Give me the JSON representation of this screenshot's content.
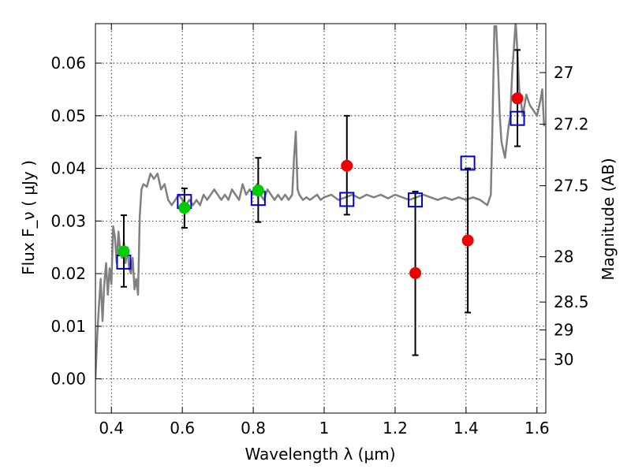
{
  "chart_data": {
    "type": "scatter",
    "title": "",
    "xlabel": "Wavelength  λ (μm)",
    "ylabel": "Flux  F_ν  ( μJy )",
    "ylabel_right": "Magnitude (AB)",
    "xlim": [
      0.355,
      1.625
    ],
    "ylim": [
      -0.0065,
      0.0675
    ],
    "grid": true,
    "x_ticks": [
      0.4,
      0.6,
      0.8,
      1.0,
      1.2,
      1.4,
      1.6
    ],
    "x_tick_labels": [
      "0.4",
      "0.6",
      "0.8",
      "1",
      "1.2",
      "1.4",
      "1.6"
    ],
    "y_ticks": [
      0.0,
      0.01,
      0.02,
      0.03,
      0.04,
      0.05,
      0.06
    ],
    "y_tick_labels": [
      "0.00",
      "0.01",
      "0.02",
      "0.03",
      "0.04",
      "0.05",
      "0.06"
    ],
    "mag_ticks": [
      {
        "label": "27",
        "flux": 0.0582
      },
      {
        "label": "27.2",
        "flux": 0.0484
      },
      {
        "label": "27.5",
        "flux": 0.0367
      },
      {
        "label": "28",
        "flux": 0.0232
      },
      {
        "label": "28.5",
        "flux": 0.0146
      },
      {
        "label": "29",
        "flux": 0.0093
      },
      {
        "label": "30",
        "flux": 0.0037
      }
    ],
    "colors": {
      "model": "#808080",
      "green_points": "#00cc00",
      "red_points": "#ee0000",
      "model_photometry": "#0000cc",
      "error_bars": "#000000"
    },
    "series": [
      {
        "type": "line",
        "color": "#808080",
        "x": [
          0.355,
          0.36,
          0.365,
          0.37,
          0.375,
          0.38,
          0.385,
          0.39,
          0.395,
          0.4,
          0.405,
          0.41,
          0.415,
          0.42,
          0.425,
          0.43,
          0.435,
          0.44,
          0.445,
          0.45,
          0.455,
          0.46,
          0.465,
          0.47,
          0.475,
          0.48,
          0.485,
          0.49,
          0.5,
          0.51,
          0.52,
          0.53,
          0.54,
          0.55,
          0.56,
          0.57,
          0.58,
          0.59,
          0.6,
          0.61,
          0.62,
          0.63,
          0.64,
          0.65,
          0.66,
          0.67,
          0.68,
          0.69,
          0.7,
          0.71,
          0.72,
          0.73,
          0.74,
          0.75,
          0.76,
          0.77,
          0.78,
          0.79,
          0.8,
          0.81,
          0.82,
          0.83,
          0.84,
          0.85,
          0.86,
          0.87,
          0.88,
          0.89,
          0.9,
          0.91,
          0.915,
          0.92,
          0.925,
          0.93,
          0.94,
          0.95,
          0.96,
          0.97,
          0.98,
          0.99,
          1.0,
          1.02,
          1.04,
          1.06,
          1.08,
          1.1,
          1.12,
          1.14,
          1.16,
          1.18,
          1.2,
          1.22,
          1.24,
          1.26,
          1.28,
          1.3,
          1.32,
          1.34,
          1.36,
          1.38,
          1.4,
          1.42,
          1.44,
          1.46,
          1.47,
          1.475,
          1.48,
          1.485,
          1.49,
          1.495,
          1.5,
          1.51,
          1.52,
          1.525,
          1.53,
          1.54,
          1.545,
          1.55,
          1.56,
          1.57,
          1.58,
          1.59,
          1.6,
          1.61,
          1.615,
          1.62
        ],
        "y": [
          0.0,
          0.008,
          0.014,
          0.019,
          0.011,
          0.018,
          0.022,
          0.016,
          0.021,
          0.018,
          0.029,
          0.027,
          0.022,
          0.028,
          0.024,
          0.023,
          0.026,
          0.022,
          0.025,
          0.021,
          0.02,
          0.023,
          0.017,
          0.019,
          0.016,
          0.031,
          0.036,
          0.037,
          0.0365,
          0.039,
          0.038,
          0.039,
          0.036,
          0.037,
          0.034,
          0.033,
          0.034,
          0.035,
          0.034,
          0.033,
          0.034,
          0.033,
          0.034,
          0.033,
          0.035,
          0.034,
          0.035,
          0.036,
          0.035,
          0.034,
          0.035,
          0.034,
          0.036,
          0.035,
          0.034,
          0.037,
          0.035,
          0.036,
          0.035,
          0.037,
          0.035,
          0.034,
          0.036,
          0.035,
          0.034,
          0.035,
          0.034,
          0.035,
          0.034,
          0.035,
          0.042,
          0.047,
          0.036,
          0.035,
          0.034,
          0.0345,
          0.034,
          0.0345,
          0.035,
          0.034,
          0.0345,
          0.035,
          0.034,
          0.0345,
          0.035,
          0.0343,
          0.035,
          0.0345,
          0.035,
          0.0343,
          0.035,
          0.0345,
          0.034,
          0.0345,
          0.035,
          0.0345,
          0.034,
          0.0345,
          0.034,
          0.0345,
          0.034,
          0.0345,
          0.034,
          0.033,
          0.035,
          0.05,
          0.067,
          0.067,
          0.06,
          0.05,
          0.045,
          0.042,
          0.048,
          0.05,
          0.058,
          0.068,
          0.062,
          0.055,
          0.05,
          0.054,
          0.052,
          0.051,
          0.05,
          0.053,
          0.055,
          0.048
        ]
      },
      {
        "type": "points",
        "marker": "circle",
        "color": "#00cc00",
        "points": [
          {
            "x": 0.435,
            "y": 0.0242,
            "yerr_low": 0.0175,
            "yerr_high": 0.0311
          },
          {
            "x": 0.606,
            "y": 0.0325,
            "yerr_low": 0.0287,
            "yerr_high": 0.0362
          },
          {
            "x": 0.814,
            "y": 0.0358,
            "yerr_low": 0.0298,
            "yerr_high": 0.042
          }
        ]
      },
      {
        "type": "points",
        "marker": "circle",
        "color": "#ee0000",
        "points": [
          {
            "x": 1.064,
            "y": 0.0405,
            "yerr_low": 0.0312,
            "yerr_high": 0.05
          },
          {
            "x": 1.257,
            "y": 0.0201,
            "yerr_low": 0.0045,
            "yerr_high": 0.0356
          },
          {
            "x": 1.405,
            "y": 0.0263,
            "yerr_low": 0.0126,
            "yerr_high": 0.04
          },
          {
            "x": 1.545,
            "y": 0.0533,
            "yerr_low": 0.0442,
            "yerr_high": 0.0625
          }
        ]
      },
      {
        "type": "points",
        "marker": "square",
        "color": "#0000cc",
        "points": [
          {
            "x": 0.435,
            "y": 0.0222
          },
          {
            "x": 0.606,
            "y": 0.0337
          },
          {
            "x": 0.814,
            "y": 0.0343
          },
          {
            "x": 1.064,
            "y": 0.0341
          },
          {
            "x": 1.257,
            "y": 0.034
          },
          {
            "x": 1.405,
            "y": 0.041
          },
          {
            "x": 1.545,
            "y": 0.0495
          }
        ]
      }
    ]
  }
}
